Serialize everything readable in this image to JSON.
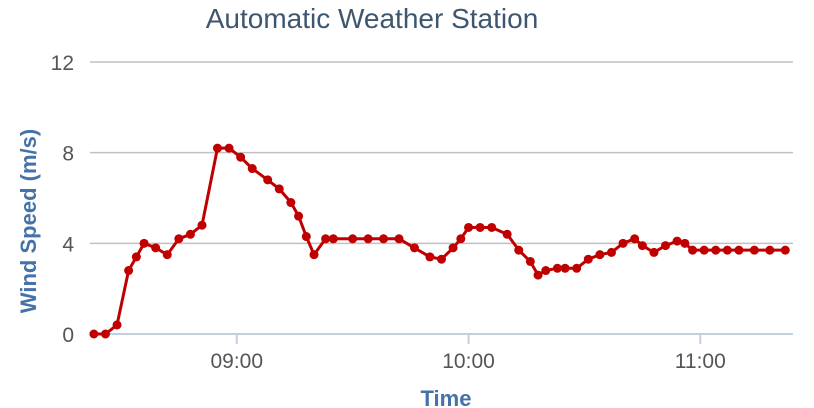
{
  "chart_data": {
    "type": "line",
    "title": "Automatic Weather Station",
    "xlabel": "Time",
    "ylabel": "Wind Speed (m/s)",
    "ylim": [
      0,
      12
    ],
    "yticks": [
      0,
      4,
      8,
      12
    ],
    "xlim": [
      "08:22",
      "11:24"
    ],
    "xticks": [
      "09:00",
      "10:00",
      "11:00"
    ],
    "grid": true,
    "legend": "none",
    "colors": {
      "series": "#c00000",
      "title": "#3e576f",
      "axis_title": "#4572a7",
      "tick_label": "#555555",
      "grid": "#c0c0c0"
    },
    "series": [
      {
        "x": [
          "08:23",
          "08:26",
          "08:29",
          "08:32",
          "08:34",
          "08:36",
          "08:39",
          "08:42",
          "08:45",
          "08:48",
          "08:51",
          "08:55",
          "08:58",
          "09:01",
          "09:04",
          "09:08",
          "09:11",
          "09:14",
          "09:16",
          "09:18",
          "09:20",
          "09:23",
          "09:25",
          "09:30",
          "09:34",
          "09:38",
          "09:42",
          "09:46",
          "09:50",
          "09:53",
          "09:56",
          "09:58",
          "10:00",
          "10:03",
          "10:06",
          "10:10",
          "10:13",
          "10:16",
          "10:18",
          "10:20",
          "10:23",
          "10:25",
          "10:28",
          "10:31",
          "10:34",
          "10:37",
          "10:40",
          "10:43",
          "10:45",
          "10:48",
          "10:51",
          "10:54",
          "10:56",
          "10:58",
          "11:01",
          "11:04",
          "11:07",
          "11:10",
          "11:14",
          "11:18",
          "11:22"
        ],
        "values": [
          0,
          0,
          0.4,
          2.8,
          3.4,
          4.0,
          3.8,
          3.5,
          4.2,
          4.4,
          4.8,
          8.2,
          8.2,
          7.8,
          7.3,
          6.8,
          6.4,
          5.8,
          5.2,
          4.3,
          3.5,
          4.2,
          4.2,
          4.2,
          4.2,
          4.2,
          4.2,
          3.8,
          3.4,
          3.3,
          3.8,
          4.2,
          4.7,
          4.7,
          4.7,
          4.4,
          3.7,
          3.2,
          2.6,
          2.8,
          2.9,
          2.9,
          2.9,
          3.3,
          3.5,
          3.6,
          4.0,
          4.2,
          3.9,
          3.6,
          3.9,
          4.1,
          4.0,
          3.7,
          3.7,
          3.7,
          3.7,
          3.7,
          3.7,
          3.7,
          3.7
        ]
      }
    ]
  }
}
